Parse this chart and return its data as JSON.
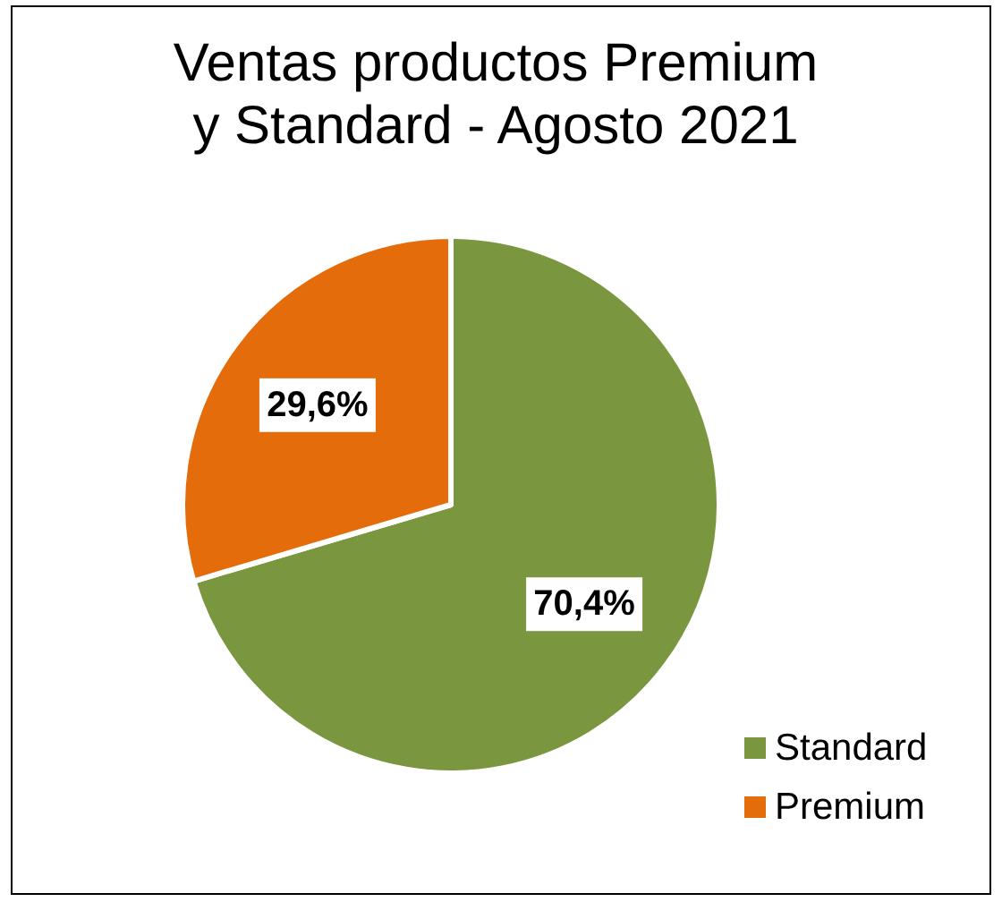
{
  "chart_data": {
    "type": "pie",
    "title": "Ventas productos Premium y Standard - Agosto 2021",
    "categories": [
      "Standard",
      "Premium"
    ],
    "values": [
      70.4,
      29.6
    ],
    "colors": [
      "#7a963e",
      "#e46c0a"
    ],
    "value_labels": [
      "70,4%",
      "29,6%"
    ],
    "legend": "bottom right"
  }
}
